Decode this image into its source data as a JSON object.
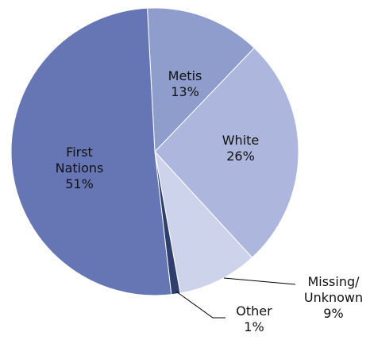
{
  "chart_data": {
    "type": "pie",
    "categories": [
      "Metis",
      "White",
      "Missing/ Unknown",
      "Other",
      "First Nations"
    ],
    "values": [
      13,
      26,
      9,
      1,
      51
    ],
    "value_labels": [
      "13%",
      "26%",
      "9%",
      "1%",
      "51%"
    ],
    "colors": [
      "#8e9dcb",
      "#adb6dc",
      "#cdd3ea",
      "#2e3f6e",
      "#6676b4"
    ]
  }
}
